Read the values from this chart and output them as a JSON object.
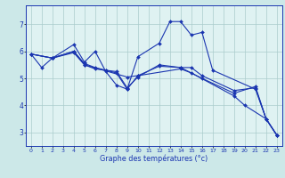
{
  "background_color": "#cce8e8",
  "plot_background": "#dff2f2",
  "grid_color": "#aacccc",
  "line_color": "#1a35b0",
  "xlabel": "Graphe des températures (°c)",
  "xlim": [
    -0.5,
    23.5
  ],
  "ylim": [
    2.5,
    7.7
  ],
  "yticks": [
    3,
    4,
    5,
    6,
    7
  ],
  "xticks": [
    0,
    1,
    2,
    3,
    4,
    5,
    6,
    7,
    8,
    9,
    10,
    11,
    12,
    13,
    14,
    15,
    16,
    17,
    18,
    19,
    20,
    21,
    22,
    23
  ],
  "series": [
    {
      "x": [
        0,
        1,
        2,
        4,
        5,
        6,
        7,
        8,
        9,
        10,
        12,
        13,
        14,
        15,
        16,
        17,
        21,
        22,
        23
      ],
      "y": [
        5.9,
        5.4,
        5.75,
        6.25,
        5.6,
        6.0,
        5.25,
        4.75,
        4.6,
        5.8,
        6.3,
        7.1,
        7.1,
        6.6,
        6.7,
        5.3,
        4.6,
        3.5,
        2.9
      ]
    },
    {
      "x": [
        0,
        2,
        4,
        5,
        6,
        7,
        8,
        9,
        10,
        12,
        14,
        15,
        16,
        19,
        21,
        22,
        23
      ],
      "y": [
        5.9,
        5.75,
        6.0,
        5.55,
        5.4,
        5.3,
        5.25,
        4.65,
        5.05,
        5.5,
        5.4,
        5.4,
        5.1,
        4.55,
        4.65,
        3.5,
        2.9
      ]
    },
    {
      "x": [
        0,
        2,
        4,
        5,
        6,
        7,
        8,
        9,
        10,
        12,
        14,
        16,
        19,
        21,
        22,
        23
      ],
      "y": [
        5.9,
        5.75,
        5.95,
        5.5,
        5.35,
        5.3,
        5.2,
        4.6,
        5.1,
        5.45,
        5.4,
        5.0,
        4.45,
        4.7,
        3.5,
        2.9
      ]
    },
    {
      "x": [
        0,
        2,
        4,
        5,
        9,
        10,
        14,
        15,
        19,
        20,
        22,
        23
      ],
      "y": [
        5.9,
        5.75,
        6.0,
        5.5,
        5.05,
        5.1,
        5.35,
        5.2,
        4.35,
        4.0,
        3.5,
        2.9
      ]
    }
  ]
}
